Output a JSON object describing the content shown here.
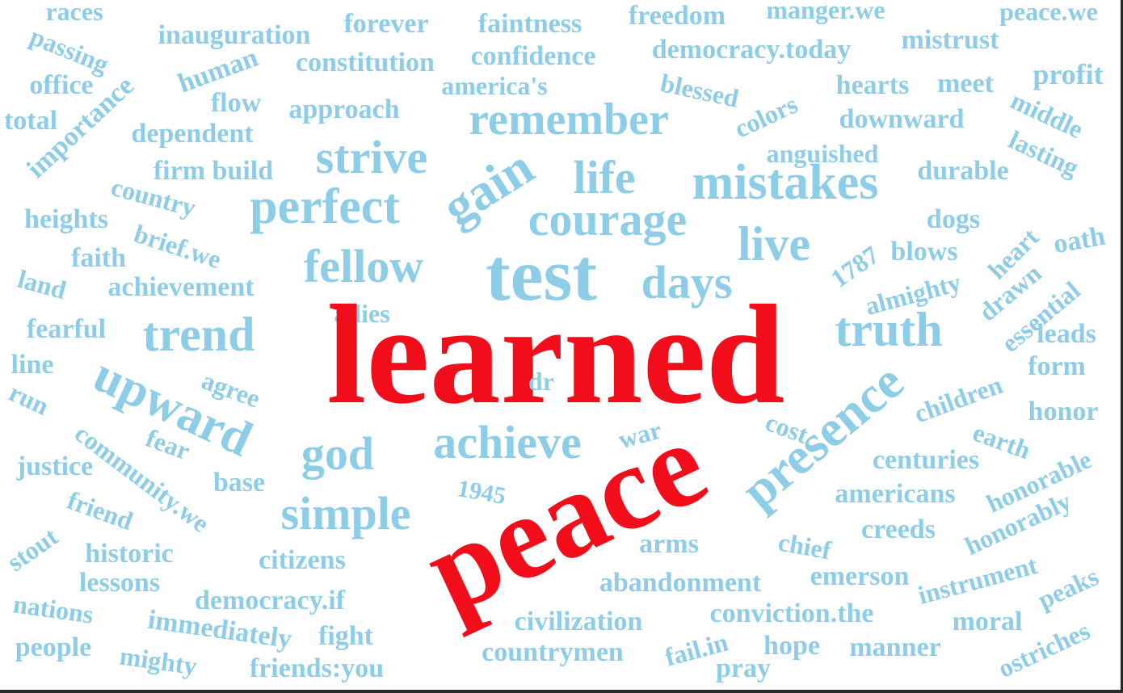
{
  "colors": {
    "primary": "#8ECDE8",
    "emphasis": "#F20D1A",
    "background": "#FFFFFF"
  },
  "words": {
    "w00": {
      "text": "races",
      "weight": 32
    },
    "w01": {
      "text": "manger.we",
      "weight": 32
    },
    "w02": {
      "text": "peace.we",
      "weight": 32
    },
    "w03": {
      "text": "forever",
      "weight": 34
    },
    "w04": {
      "text": "faintness",
      "weight": 34
    },
    "w05": {
      "text": "freedom",
      "weight": 34
    },
    "w06": {
      "text": "passing",
      "weight": 32
    },
    "w07": {
      "text": "inauguration",
      "weight": 34
    },
    "w08": {
      "text": "mistrust",
      "weight": 34
    },
    "w09": {
      "text": "confidence",
      "weight": 34
    },
    "w10": {
      "text": "constitution",
      "weight": 34
    },
    "w11": {
      "text": "democracy.today",
      "weight": 34
    },
    "w12": {
      "text": "human",
      "weight": 34
    },
    "w13": {
      "text": "profit",
      "weight": 36
    },
    "w14": {
      "text": "office",
      "weight": 34
    },
    "w15": {
      "text": "america's",
      "weight": 32
    },
    "w16": {
      "text": "importance",
      "weight": 34
    },
    "w17": {
      "text": "blessed",
      "weight": 32
    },
    "w18": {
      "text": "hearts",
      "weight": 34
    },
    "w19": {
      "text": "meet",
      "weight": 34
    },
    "w20": {
      "text": "middle",
      "weight": 32
    },
    "w21": {
      "text": "flow",
      "weight": 34
    },
    "w22": {
      "text": "approach",
      "weight": 34
    },
    "w23": {
      "text": "total",
      "weight": 34
    },
    "w24": {
      "text": "remember",
      "weight": 56
    },
    "w25": {
      "text": "colors",
      "weight": 32
    },
    "w26": {
      "text": "downward",
      "weight": 34
    },
    "w27": {
      "text": "dependent",
      "weight": 34
    },
    "w28": {
      "text": "lasting",
      "weight": 32
    },
    "w29": {
      "text": "strive",
      "weight": 58
    },
    "w30": {
      "text": "anguished",
      "weight": 32
    },
    "w31": {
      "text": "firm build",
      "weight": 34
    },
    "w32": {
      "text": "durable",
      "weight": 34
    },
    "w33": {
      "text": "gain",
      "weight": 64
    },
    "w34": {
      "text": "life",
      "weight": 58
    },
    "w35": {
      "text": "mistakes",
      "weight": 62
    },
    "w36": {
      "text": "country",
      "weight": 32
    },
    "w37": {
      "text": "perfect",
      "weight": 62
    },
    "w38": {
      "text": "courage",
      "weight": 58
    },
    "w39": {
      "text": "heights",
      "weight": 34
    },
    "w40": {
      "text": "brief.we",
      "weight": 32
    },
    "w41": {
      "text": "dogs",
      "weight": 34
    },
    "w42": {
      "text": "live",
      "weight": 60
    },
    "w43": {
      "text": "oath",
      "weight": 34
    },
    "w44": {
      "text": "faith",
      "weight": 34
    },
    "w45": {
      "text": "fellow",
      "weight": 58
    },
    "w46": {
      "text": "test",
      "weight": 92
    },
    "w47": {
      "text": "1787",
      "weight": 32
    },
    "w48": {
      "text": "blows",
      "weight": 34
    },
    "w49": {
      "text": "heart",
      "weight": 32
    },
    "w50": {
      "text": "days",
      "weight": 58
    },
    "w51": {
      "text": "land",
      "weight": 32
    },
    "w52": {
      "text": "achievement",
      "weight": 34
    },
    "w53": {
      "text": "almighty",
      "weight": 32
    },
    "w54": {
      "text": "drawn",
      "weight": 32
    },
    "w55": {
      "text": "essential",
      "weight": 32
    },
    "w56": {
      "text": "allies",
      "weight": 32
    },
    "w57": {
      "text": "fearful",
      "weight": 34
    },
    "w58": {
      "text": "trend",
      "weight": 60
    },
    "w59": {
      "text": "truth",
      "weight": 60
    },
    "w60": {
      "text": "leads",
      "weight": 34
    },
    "w61": {
      "text": "learned",
      "weight": 176
    },
    "w62": {
      "text": "line",
      "weight": 34
    },
    "w63": {
      "text": "form",
      "weight": 34
    },
    "w64": {
      "text": "upward",
      "weight": 62
    },
    "w65": {
      "text": "agree",
      "weight": 32
    },
    "w66": {
      "text": "dr",
      "weight": 32
    },
    "w67": {
      "text": "run",
      "weight": 32
    },
    "w68": {
      "text": "presence",
      "weight": 64
    },
    "w69": {
      "text": "children",
      "weight": 32
    },
    "w70": {
      "text": "community.we",
      "weight": 32
    },
    "w71": {
      "text": "honor",
      "weight": 34
    },
    "w72": {
      "text": "war",
      "weight": 32
    },
    "w73": {
      "text": "cost",
      "weight": 32
    },
    "w74": {
      "text": "god",
      "weight": 58
    },
    "w75": {
      "text": "achieve",
      "weight": 58
    },
    "w76": {
      "text": "earth",
      "weight": 32
    },
    "w77": {
      "text": "fear",
      "weight": 32
    },
    "w78": {
      "text": "justice",
      "weight": 34
    },
    "w79": {
      "text": "centuries",
      "weight": 34
    },
    "w80": {
      "text": "honorable",
      "weight": 32
    },
    "w81": {
      "text": "base",
      "weight": 34
    },
    "w82": {
      "text": "peace",
      "weight": 150
    },
    "w83": {
      "text": "1945",
      "weight": 30
    },
    "w84": {
      "text": "americans",
      "weight": 34
    },
    "w85": {
      "text": "friend",
      "weight": 32
    },
    "w86": {
      "text": "simple",
      "weight": 58
    },
    "w87": {
      "text": "honorably",
      "weight": 32
    },
    "w88": {
      "text": "stout",
      "weight": 32
    },
    "w89": {
      "text": "creeds",
      "weight": 34
    },
    "w90": {
      "text": "chief",
      "weight": 32
    },
    "w91": {
      "text": "historic",
      "weight": 34
    },
    "w92": {
      "text": "arms",
      "weight": 34
    },
    "w93": {
      "text": "citizens",
      "weight": 34
    },
    "w94": {
      "text": "lessons",
      "weight": 34
    },
    "w95": {
      "text": "emerson",
      "weight": 34
    },
    "w96": {
      "text": "abandonment",
      "weight": 34
    },
    "w97": {
      "text": "instrument",
      "weight": 32
    },
    "w98": {
      "text": "democracy.if",
      "weight": 34
    },
    "w99": {
      "text": "nations",
      "weight": 32
    },
    "w100": {
      "text": "peaks",
      "weight": 32
    },
    "w101": {
      "text": "immediately",
      "weight": 34
    },
    "w102": {
      "text": "civilization",
      "weight": 34
    },
    "w103": {
      "text": "conviction.the",
      "weight": 34
    },
    "w104": {
      "text": "moral",
      "weight": 34
    },
    "w105": {
      "text": "fight",
      "weight": 34
    },
    "w106": {
      "text": "people",
      "weight": 34
    },
    "w107": {
      "text": "mighty",
      "weight": 32
    },
    "w108": {
      "text": "countrymen",
      "weight": 34
    },
    "w109": {
      "text": "fail.in",
      "weight": 32
    },
    "w110": {
      "text": "hope",
      "weight": 34
    },
    "w111": {
      "text": "manner",
      "weight": 34
    },
    "w112": {
      "text": "ostriches",
      "weight": 32
    },
    "w113": {
      "text": "friends:you",
      "weight": 34
    },
    "w114": {
      "text": "pray",
      "weight": 34
    }
  }
}
